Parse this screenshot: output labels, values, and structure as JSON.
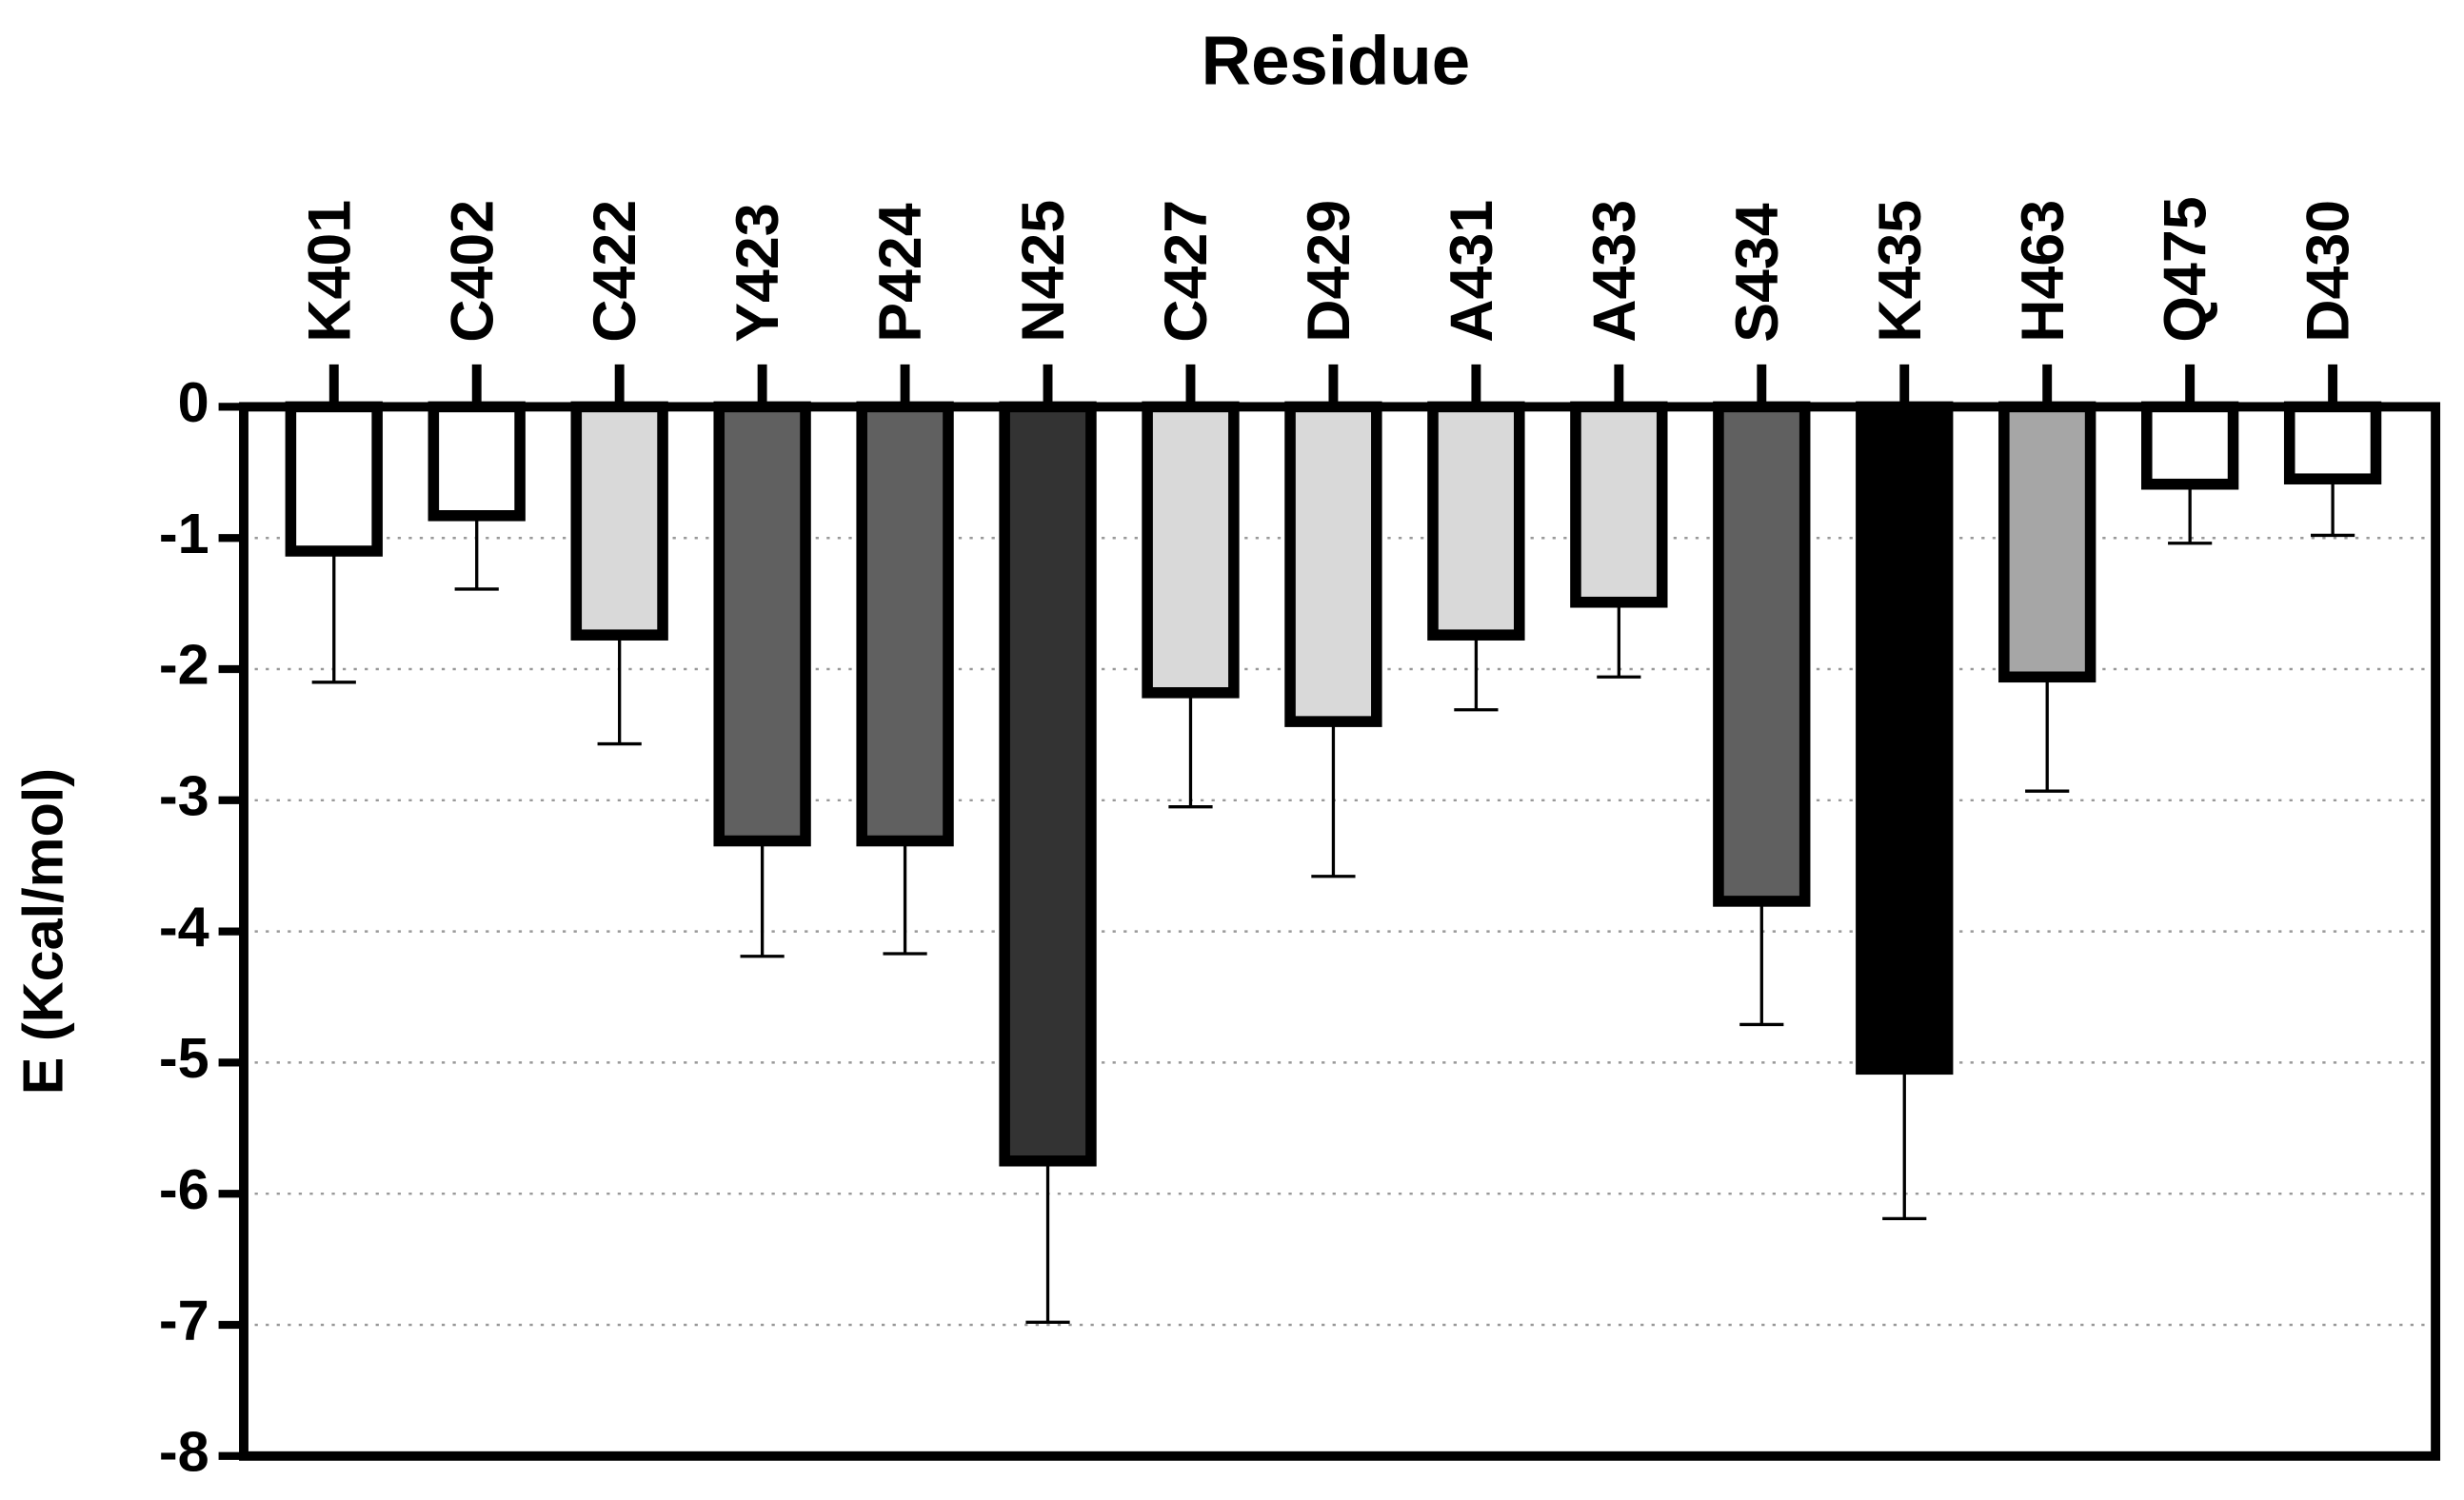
{
  "chart_data": {
    "type": "bar",
    "x_label": "Residue",
    "y_label": "E (Kcal/mol)",
    "categories": [
      "K401",
      "C402",
      "C422",
      "Y423",
      "P424",
      "N425",
      "C427",
      "D429",
      "A431",
      "A433",
      "S434",
      "K435",
      "H463",
      "Q475",
      "D430"
    ],
    "values": [
      -1.1,
      -0.83,
      -1.74,
      -3.31,
      -3.31,
      -5.75,
      -2.18,
      -2.4,
      -1.74,
      -1.49,
      -3.77,
      -5.05,
      -2.06,
      -0.59,
      -0.55
    ],
    "errors": [
      1.0,
      0.56,
      0.83,
      0.88,
      0.86,
      1.23,
      0.87,
      1.18,
      0.57,
      0.57,
      0.94,
      1.14,
      0.87,
      0.45,
      0.43
    ],
    "colors": [
      "#ffffff",
      "#ffffff",
      "#d9d9d9",
      "#606060",
      "#606060",
      "#333333",
      "#d9d9d9",
      "#d9d9d9",
      "#d9d9d9",
      "#d9d9d9",
      "#606060",
      "#000000",
      "#a6a6a6",
      "#ffffff",
      "#ffffff"
    ],
    "ylim": [
      -8,
      0
    ],
    "yticks": [
      0,
      -1,
      -2,
      -3,
      -4,
      -5,
      -6,
      -7,
      -8
    ],
    "grid": true
  }
}
